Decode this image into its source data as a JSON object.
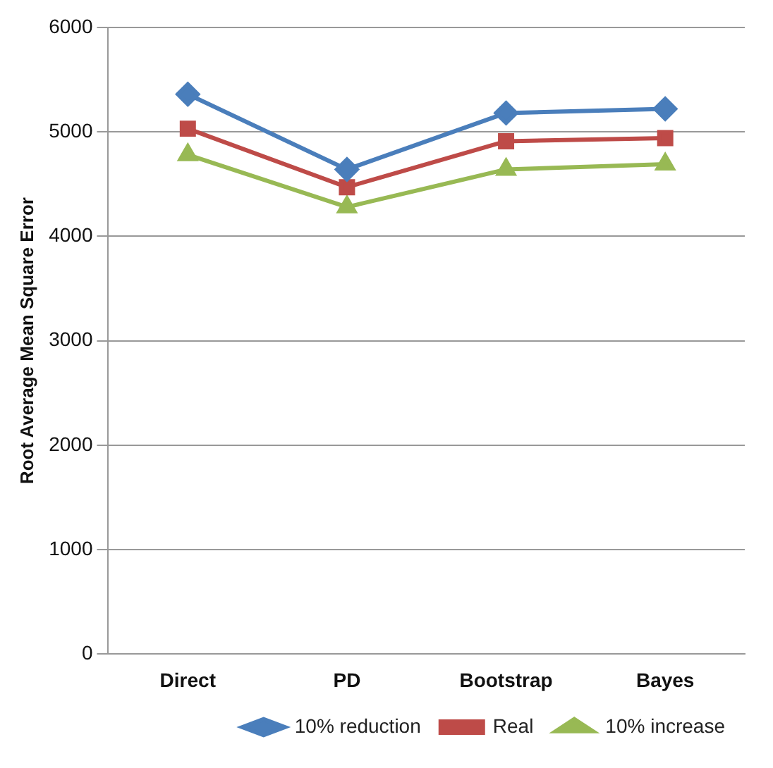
{
  "chart_data": {
    "type": "line",
    "ylabel": "Root Average Mean Square Error",
    "categories": [
      "Direct",
      "PD",
      "Bootstrap",
      "Bayes"
    ],
    "series": [
      {
        "name": "10% reduction",
        "color": "#4a7ebb",
        "marker": "diamond",
        "values": [
          5360,
          4640,
          5180,
          5220
        ]
      },
      {
        "name": "Real",
        "color": "#be4b48",
        "marker": "square",
        "values": [
          5030,
          4470,
          4910,
          4940
        ]
      },
      {
        "name": "10% increase",
        "color": "#98b954",
        "marker": "triangle",
        "values": [
          4780,
          4280,
          4640,
          4690
        ]
      }
    ],
    "ylim": [
      0,
      6000
    ],
    "yticks": [
      0,
      1000,
      2000,
      3000,
      4000,
      5000,
      6000
    ],
    "grid": "y",
    "legend": "bottom right",
    "line_style": "solid"
  }
}
